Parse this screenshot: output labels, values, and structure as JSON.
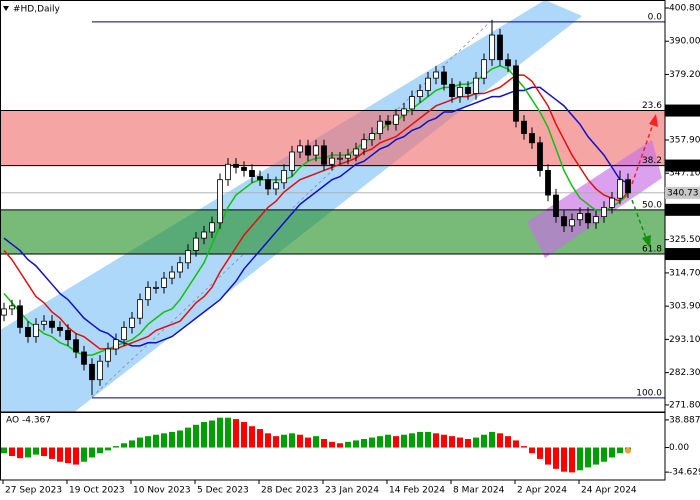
{
  "chart_data": {
    "type": "candlestick",
    "title": "#HD,Daily",
    "categories": [
      "27 Sep 2023",
      null,
      null,
      null,
      null,
      null,
      null,
      null,
      "19 Oct 2023",
      null,
      null,
      null,
      null,
      null,
      null,
      null,
      "10 Nov 2023",
      null,
      null,
      null,
      null,
      null,
      null,
      null,
      "5 Dec 2023",
      null,
      null,
      null,
      null,
      null,
      null,
      null,
      "28 Dec 2023",
      null,
      null,
      null,
      null,
      null,
      null,
      null,
      "23 Jan 2024",
      null,
      null,
      null,
      null,
      null,
      null,
      null,
      "14 Feb 2024",
      null,
      null,
      null,
      null,
      null,
      null,
      null,
      "8 Mar 2024",
      null,
      null,
      null,
      null,
      null,
      null,
      null,
      "2 Apr 2024",
      null,
      null,
      null,
      null,
      null,
      null,
      null,
      "24 Apr 2024",
      null,
      null,
      null,
      null,
      null,
      null
    ],
    "open": [
      301,
      303,
      304,
      297,
      294,
      298,
      299,
      297,
      296,
      293,
      289,
      285,
      280,
      286,
      290,
      293,
      297,
      300,
      306,
      310,
      310,
      313,
      315,
      318,
      322,
      326,
      328,
      331,
      345,
      350,
      349,
      348,
      346,
      345,
      342,
      344,
      348,
      354,
      356,
      353,
      356,
      350,
      352,
      352,
      353,
      355,
      358,
      360,
      364,
      363,
      366,
      368,
      372,
      374,
      378,
      380,
      376,
      372,
      375,
      373,
      378,
      384,
      392,
      384,
      382,
      364,
      360,
      357,
      348,
      340,
      333,
      330,
      332,
      334,
      331,
      333,
      336,
      339,
      345
    ],
    "high": [
      305,
      306,
      306,
      299,
      300,
      301,
      301,
      299,
      298,
      295,
      291,
      287,
      288,
      292,
      295,
      299,
      302,
      308,
      312,
      312,
      315,
      317,
      320,
      324,
      328,
      330,
      333,
      347,
      352,
      352,
      351,
      350,
      348,
      347,
      346,
      350,
      356,
      358,
      358,
      358,
      358,
      354,
      354,
      355,
      357,
      360,
      362,
      366,
      366,
      368,
      370,
      374,
      376,
      380,
      382,
      382,
      378,
      377,
      377,
      380,
      386,
      397,
      394,
      386,
      384,
      366,
      362,
      359,
      350,
      342,
      335,
      334,
      336,
      336,
      335,
      338,
      341,
      348,
      347
    ],
    "low": [
      299,
      301,
      295,
      292,
      292,
      296,
      295,
      294,
      291,
      287,
      283,
      275,
      278,
      284,
      288,
      291,
      295,
      298,
      304,
      308,
      308,
      311,
      313,
      316,
      320,
      324,
      326,
      329,
      343,
      347,
      346,
      344,
      343,
      340,
      340,
      342,
      346,
      352,
      351,
      351,
      348,
      348,
      350,
      350,
      351,
      353,
      356,
      358,
      361,
      361,
      364,
      366,
      370,
      372,
      376,
      374,
      370,
      370,
      371,
      371,
      376,
      382,
      382,
      380,
      362,
      358,
      355,
      346,
      338,
      331,
      328,
      328,
      330,
      329,
      329,
      331,
      334,
      337,
      339
    ],
    "close": [
      303,
      304,
      297,
      294,
      298,
      299,
      297,
      296,
      293,
      289,
      285,
      280,
      286,
      290,
      293,
      297,
      300,
      306,
      310,
      310,
      313,
      315,
      318,
      322,
      326,
      328,
      331,
      345,
      350,
      349,
      348,
      346,
      345,
      342,
      344,
      348,
      354,
      356,
      353,
      356,
      350,
      352,
      352,
      353,
      355,
      358,
      360,
      364,
      363,
      366,
      368,
      372,
      374,
      378,
      380,
      376,
      372,
      375,
      373,
      378,
      384,
      392,
      384,
      382,
      364,
      360,
      357,
      348,
      340,
      333,
      330,
      332,
      334,
      331,
      333,
      336,
      339,
      345,
      340.73
    ],
    "up_color": "#ffffff",
    "down_color": "#000000",
    "ylim": [
      269.5,
      403.4
    ],
    "yticks": [
      {
        "value": 400.8,
        "label": "400.80"
      },
      {
        "value": 390,
        "label": "390.00"
      },
      {
        "value": 379.2,
        "label": "379.20"
      },
      {
        "value": 357.9,
        "label": "357.90"
      },
      {
        "value": 347.1,
        "label": "347.10"
      },
      {
        "value": 325.5,
        "label": "325.50"
      },
      {
        "value": 314.7,
        "label": "314.70"
      },
      {
        "value": 303.9,
        "label": "303.90"
      },
      {
        "value": 293.1,
        "label": "293.10"
      },
      {
        "value": 282.3,
        "label": "282.30"
      },
      {
        "value": 271.8,
        "label": "271.80"
      }
    ],
    "grid": false,
    "moving_averages": [
      {
        "color": "#1010c8",
        "values": [
          326,
          324,
          322,
          319,
          317,
          314,
          311,
          308,
          306,
          303,
          300,
          298,
          296,
          295,
          293,
          292,
          291,
          291,
          292,
          292,
          293,
          294,
          296,
          298,
          300,
          302,
          304,
          306,
          309,
          312,
          316,
          319,
          322,
          325,
          328,
          331,
          334,
          337,
          339,
          341,
          343,
          345,
          346,
          348,
          350,
          351,
          353,
          355,
          356,
          358,
          359,
          361,
          362,
          364,
          365,
          367,
          367,
          368,
          369,
          370,
          371,
          372,
          372,
          373,
          374,
          374,
          375,
          375,
          373,
          371,
          369,
          366,
          363,
          359,
          356,
          353,
          349,
          345,
          344
        ]
      },
      {
        "color": "#e01010",
        "values": [
          322,
          319,
          315,
          311,
          307,
          305,
          302,
          300,
          297,
          295,
          294,
          292,
          290,
          290,
          290,
          291,
          292,
          293,
          294,
          296,
          297,
          298,
          299,
          302,
          305,
          307,
          310,
          315,
          319,
          323,
          327,
          330,
          333,
          336,
          338,
          341,
          343,
          345,
          346,
          347,
          348,
          349,
          350,
          351,
          352,
          354,
          355,
          357,
          358,
          359,
          361,
          363,
          365,
          367,
          369,
          370,
          371,
          372,
          372,
          373,
          373,
          374,
          375,
          377,
          379,
          379,
          377,
          373,
          369,
          363,
          358,
          353,
          349,
          345,
          342,
          340,
          339,
          338,
          341
        ]
      },
      {
        "color": "#10c010",
        "values": [
          308,
          305,
          302,
          299,
          297,
          295,
          294,
          292,
          291,
          289,
          288,
          288,
          289,
          290,
          291,
          292,
          293,
          295,
          298,
          300,
          302,
          303,
          306,
          310,
          314,
          318,
          324,
          330,
          336,
          340,
          342,
          344,
          345,
          345,
          345,
          345,
          346,
          349,
          351,
          352,
          352,
          353,
          353,
          353,
          355,
          357,
          359,
          361,
          363,
          364,
          366,
          368,
          370,
          372,
          374,
          375,
          375,
          376,
          376,
          377,
          379,
          381,
          382,
          381,
          378,
          375,
          371,
          367,
          362,
          355,
          348,
          343,
          339,
          337,
          335,
          335,
          336,
          338,
          340
        ]
      }
    ],
    "fib_levels": [
      {
        "ratio": "0.0",
        "price": 396.31,
        "axis_label": false,
        "color": "#000080"
      },
      {
        "ratio": "23.6",
        "price": 367.47,
        "axis_label": true,
        "color": "#000000",
        "zone_color": "rgba(240,110,110,0.62)"
      },
      {
        "ratio": "38.2",
        "price": 349.59,
        "axis_label": true,
        "color": "#000000"
      },
      {
        "ratio": "50.0",
        "price": 335.21,
        "axis_label": true,
        "color": "#000000",
        "zone_color": "rgba(30,140,30,0.6)"
      },
      {
        "ratio": "61.8",
        "price": 320.83,
        "axis_label": true,
        "color": "#000000"
      },
      {
        "ratio": "100.0",
        "price": 274.11,
        "axis_label": false,
        "color": "#000080"
      }
    ],
    "last_price": 340.73,
    "ao": {
      "name": "AO",
      "values": [
        -8,
        -12,
        -15,
        -14,
        -10,
        -12,
        -16,
        -20,
        -22,
        -24,
        -20,
        -14,
        -8,
        -4,
        2,
        6,
        10,
        14,
        16,
        18,
        20,
        22,
        24,
        28,
        32,
        36,
        38,
        42,
        42,
        40,
        36,
        30,
        26,
        20,
        16,
        18,
        20,
        18,
        14,
        16,
        12,
        8,
        6,
        8,
        10,
        12,
        14,
        16,
        18,
        16,
        18,
        20,
        22,
        22,
        20,
        18,
        16,
        14,
        12,
        14,
        18,
        22,
        20,
        16,
        10,
        2,
        -8,
        -16,
        -24,
        -30,
        -34,
        -35,
        -32,
        -28,
        -24,
        -20,
        -14,
        -8,
        -4.367
      ],
      "up_color": "#00a000",
      "down_color": "#ff0000",
      "ylim": [
        -45.7,
        48.6
      ],
      "yticks": [
        38.887,
        {
          "value": 0,
          "label": "0.00"
        },
        -34.629
      ]
    }
  }
}
